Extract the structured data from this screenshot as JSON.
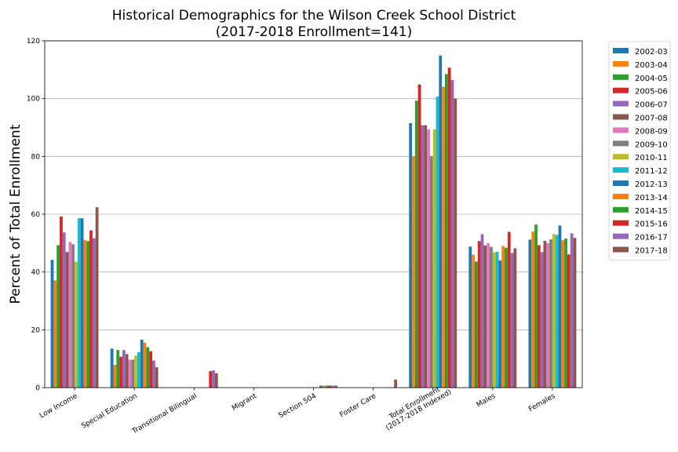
{
  "chart_data": {
    "type": "bar",
    "title": "Historical Demographics for the Wilson Creek School District",
    "subtitle": "(2017-2018 Enrollment=141)",
    "xlabel": "",
    "ylabel": "Percent of Total Enrollment",
    "ylim": [
      0,
      120
    ],
    "yticks": [
      0,
      20,
      40,
      60,
      80,
      100,
      120
    ],
    "grid": "horizontal",
    "legend_position": "outside-right",
    "categories": [
      "Low Income",
      "Special Education",
      "Transitional Bilingual",
      "Migrant",
      "Section 504",
      "Foster Care",
      "Total Enrollment\n(2017-2018 Indexed)",
      "Males",
      "Females"
    ],
    "series": [
      {
        "name": "2002-03",
        "color": "#1f77b4",
        "values": [
          44.2,
          13.5,
          0,
          0,
          0,
          0,
          91.5,
          48.8,
          51.2
        ]
      },
      {
        "name": "2003-04",
        "color": "#ff7f0e",
        "values": [
          37.1,
          7.9,
          0,
          0,
          0,
          0,
          80.1,
          46.0,
          54.0
        ]
      },
      {
        "name": "2004-05",
        "color": "#2ca02c",
        "values": [
          49.3,
          13.0,
          0,
          0,
          0,
          0,
          99.3,
          43.6,
          56.4
        ]
      },
      {
        "name": "2005-06",
        "color": "#d62728",
        "values": [
          59.2,
          10.7,
          0,
          0,
          0,
          0,
          104.9,
          50.7,
          49.3
        ]
      },
      {
        "name": "2006-07",
        "color": "#9467bd",
        "values": [
          53.7,
          13.0,
          0,
          0,
          0,
          0,
          90.8,
          53.1,
          46.9
        ]
      },
      {
        "name": "2007-08",
        "color": "#8c564b",
        "values": [
          46.9,
          11.6,
          0,
          0,
          0,
          0,
          90.8,
          49.2,
          50.8
        ]
      },
      {
        "name": "2008-09",
        "color": "#e377c2",
        "values": [
          50.4,
          9.6,
          0,
          0,
          0,
          0,
          89.4,
          50.0,
          50.0
        ]
      },
      {
        "name": "2009-10",
        "color": "#7f7f7f",
        "values": [
          49.6,
          9.7,
          0,
          0,
          0,
          0,
          80.1,
          48.7,
          51.3
        ]
      },
      {
        "name": "2010-11",
        "color": "#bcbd22",
        "values": [
          43.6,
          11.1,
          0,
          0,
          0,
          0,
          89.4,
          46.8,
          53.2
        ]
      },
      {
        "name": "2011-12",
        "color": "#17becf",
        "values": [
          58.6,
          12.3,
          0,
          0,
          0,
          0,
          100.7,
          47.0,
          52.8
        ]
      },
      {
        "name": "2012-13",
        "color": "#1f77b4",
        "values": [
          58.6,
          16.6,
          0,
          0,
          0.7,
          0,
          114.9,
          44.0,
          56.1
        ]
      },
      {
        "name": "2013-14",
        "color": "#ff7f0e",
        "values": [
          51.1,
          15.6,
          0,
          0,
          0.7,
          0,
          104.1,
          49.0,
          51.0
        ]
      },
      {
        "name": "2014-15",
        "color": "#2ca02c",
        "values": [
          50.7,
          14.0,
          0,
          0,
          0.7,
          0,
          108.5,
          48.4,
          51.6
        ]
      },
      {
        "name": "2015-16",
        "color": "#d62728",
        "values": [
          54.4,
          12.6,
          5.7,
          0,
          0.7,
          0,
          110.7,
          53.9,
          46.1
        ]
      },
      {
        "name": "2016-17",
        "color": "#9467bd",
        "values": [
          51.7,
          9.4,
          6.0,
          0,
          0.7,
          0,
          106.4,
          46.6,
          53.4
        ]
      },
      {
        "name": "2017-18",
        "color": "#8c564b",
        "values": [
          62.4,
          7.1,
          5.0,
          0,
          0.7,
          2.8,
          100.0,
          48.2,
          51.8
        ]
      }
    ]
  },
  "colors": {
    "axis": "#000000",
    "grid": "#b0b0b0",
    "background": "#ffffff"
  }
}
